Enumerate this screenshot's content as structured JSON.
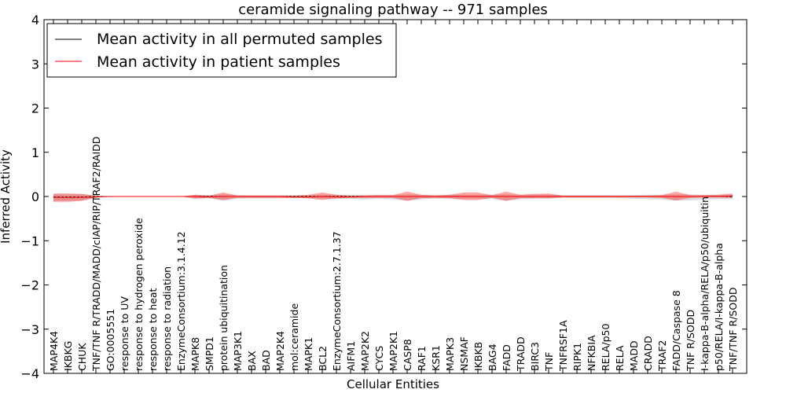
{
  "chart_data": {
    "type": "line",
    "title": "ceramide signaling pathway -- 971 samples",
    "xlabel": "Cellular Entities",
    "ylabel": "Inferred Activity",
    "ylim": [
      -4,
      4
    ],
    "yticks": [
      -4,
      -3,
      -2,
      -1,
      0,
      1,
      2,
      3,
      4
    ],
    "ytick_labels": [
      "−4",
      "−3",
      "−2",
      "−1",
      "0",
      "1",
      "2",
      "3",
      "4"
    ],
    "grid": false,
    "legend_position": "top-left",
    "categories": [
      "MAP4K4",
      "IKBKG",
      "CHUK",
      "TNF/TNF R/TRADD/MADD/cIAP/RIP/TRAF2/RAIDD",
      "GO:0005551",
      "response to UV",
      "response to hydrogen peroxide",
      "response to heat",
      "response to radiation",
      "EnzymeConsortium:3.1.4.12",
      "MAPK8",
      "SMPD1",
      "protein ubiquitination",
      "MAP3K1",
      "BAX",
      "BAD",
      "MAP2K4",
      "mol:ceramide",
      "MAPK1",
      "BCL2",
      "EnzymeConsortium:2.7.1.37",
      "AIFM1",
      "MAP2K2",
      "CYCS",
      "MAP2K1",
      "CASP8",
      "RAF1",
      "KSR1",
      "MAPK3",
      "NSMAF",
      "IKBKB",
      "BAG4",
      "FADD",
      "TRADD",
      "BIRC3",
      "TNF",
      "TNFRSF1A",
      "RIPK1",
      "NFKBIA",
      "RELA/p50",
      "RELA",
      "MADD",
      "CRADD",
      "TRAF2",
      "FADD/Caspase 8",
      "TNF R/SODD",
      "I-kappa-B-alpha/RELA/p50/ubiquitin",
      "p50/RELA/I-kappa-B-alpha",
      "TNF/TNF R/SODD"
    ],
    "series": [
      {
        "name": "Mean activity in all permuted samples",
        "color": "#000000",
        "style": "dashed",
        "values": [
          -0.01,
          -0.01,
          -0.01,
          0,
          0,
          0,
          0,
          0,
          0,
          0,
          0,
          0,
          0,
          0,
          0,
          0,
          0,
          0,
          0,
          0,
          0,
          0,
          0,
          0,
          0,
          0,
          0,
          0,
          0,
          0,
          0,
          0,
          0,
          0,
          0,
          0,
          0,
          0,
          0,
          0,
          0,
          0,
          0,
          0,
          0,
          0,
          0,
          0,
          0
        ],
        "band_low": [
          -0.1,
          -0.1,
          -0.09,
          -0.02,
          0,
          0,
          0,
          0,
          0,
          0,
          -0.06,
          -0.04,
          -0.09,
          -0.05,
          -0.04,
          -0.04,
          -0.04,
          -0.04,
          -0.04,
          -0.05,
          -0.06,
          -0.05,
          -0.07,
          -0.05,
          -0.07,
          -0.09,
          -0.06,
          -0.05,
          -0.05,
          -0.05,
          -0.05,
          -0.05,
          -0.09,
          -0.06,
          -0.05,
          -0.05,
          -0.03,
          -0.03,
          -0.03,
          -0.03,
          -0.04,
          -0.05,
          -0.06,
          -0.07,
          -0.09,
          -0.09,
          -0.07,
          -0.06,
          -0.06
        ],
        "band_high": [
          0.05,
          0.05,
          0.05,
          0.02,
          0,
          0,
          0,
          0,
          0,
          0,
          0.04,
          0.03,
          0.05,
          0.04,
          0.03,
          0.03,
          0.03,
          0.03,
          0.03,
          0.04,
          0.04,
          0.04,
          0.04,
          0.04,
          0.04,
          0.05,
          0.04,
          0.04,
          0.04,
          0.04,
          0.04,
          0.04,
          0.05,
          0.04,
          0.04,
          0.04,
          0.03,
          0.03,
          0.03,
          0.03,
          0.03,
          0.03,
          0.04,
          0.04,
          0.05,
          0.05,
          0.04,
          0.04,
          0.04
        ],
        "band_color": "#cccccc"
      },
      {
        "name": "Mean activity in patient samples",
        "color": "#ff0000",
        "style": "solid",
        "values": [
          -0.02,
          -0.02,
          -0.02,
          -0.01,
          0,
          0,
          0,
          0,
          0,
          0,
          0,
          -0.01,
          0,
          0,
          0,
          0,
          0,
          -0.01,
          -0.01,
          0,
          -0.01,
          -0.01,
          0,
          0,
          0,
          0,
          0,
          0,
          0,
          0,
          0,
          0,
          0,
          0,
          0,
          0,
          0,
          0,
          0,
          0,
          0,
          0,
          0,
          0,
          0,
          0,
          0,
          0,
          0.01
        ],
        "band_low": [
          -0.12,
          -0.12,
          -0.1,
          -0.03,
          0,
          0,
          0,
          0,
          0,
          0,
          -0.04,
          -0.03,
          -0.08,
          -0.03,
          -0.03,
          -0.03,
          -0.03,
          -0.03,
          -0.04,
          -0.08,
          -0.04,
          -0.03,
          -0.03,
          -0.03,
          -0.03,
          -0.1,
          -0.04,
          -0.03,
          -0.04,
          -0.08,
          -0.08,
          -0.03,
          -0.1,
          -0.04,
          -0.04,
          -0.04,
          -0.02,
          -0.02,
          -0.02,
          -0.02,
          -0.02,
          -0.02,
          -0.02,
          -0.03,
          -0.09,
          -0.03,
          -0.02,
          -0.02,
          -0.03
        ],
        "band_high": [
          0.07,
          0.07,
          0.06,
          0.02,
          0,
          0,
          0,
          0,
          0,
          0,
          0.04,
          0.02,
          0.09,
          0.02,
          0.02,
          0.02,
          0.02,
          0.02,
          0.04,
          0.09,
          0.04,
          0.02,
          0.02,
          0.03,
          0.03,
          0.11,
          0.04,
          0.02,
          0.04,
          0.09,
          0.09,
          0.03,
          0.11,
          0.04,
          0.06,
          0.07,
          0.02,
          0.02,
          0.02,
          0.02,
          0.02,
          0.02,
          0.02,
          0.03,
          0.11,
          0.03,
          0.03,
          0.04,
          0.07
        ],
        "band_color": "#ff0000"
      }
    ]
  }
}
